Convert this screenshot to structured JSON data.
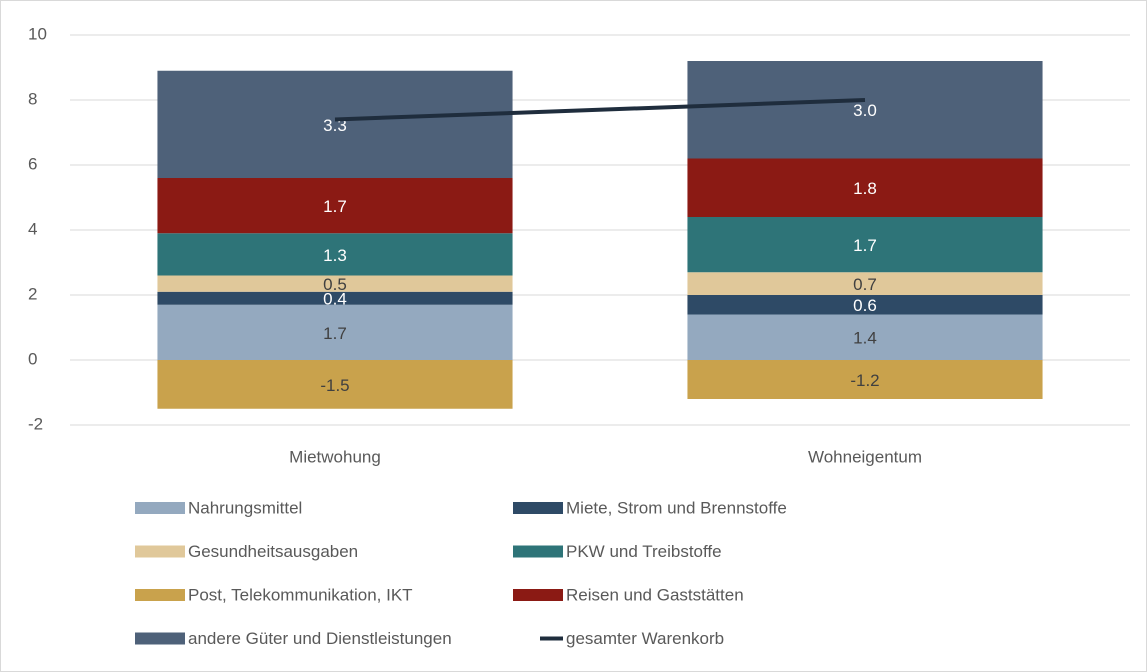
{
  "chart_data": {
    "type": "stacked_bar_line",
    "categories": [
      "Mietwohung",
      "Wohneigentum"
    ],
    "ylim": [
      -2,
      10
    ],
    "yticks": [
      -2,
      0,
      2,
      4,
      6,
      8,
      10
    ],
    "grid": true,
    "series": [
      {
        "name": "Nahrungsmittel",
        "type": "bar",
        "color": "#94a9bf",
        "label_color": "#404040",
        "values": [
          1.7,
          1.4
        ],
        "value_labels": [
          "1.7",
          "1.4"
        ]
      },
      {
        "name": "Miete, Strom und Brennstoffe",
        "type": "bar",
        "color": "#2e4a66",
        "label_color": "#ffffff",
        "values": [
          0.4,
          0.6
        ],
        "value_labels": [
          "0.4",
          "0.6"
        ]
      },
      {
        "name": "Gesundheitsausgaben",
        "type": "bar",
        "color": "#e0c89a",
        "label_color": "#404040",
        "values": [
          0.5,
          0.7
        ],
        "value_labels": [
          "0.5",
          "0.7"
        ]
      },
      {
        "name": "PKW und Treibstoffe",
        "type": "bar",
        "color": "#2e7478",
        "label_color": "#ffffff",
        "values": [
          1.3,
          1.7
        ],
        "value_labels": [
          "1.3",
          "1.7"
        ]
      },
      {
        "name": "Post, Telekommunikation, IKT",
        "type": "bar",
        "color": "#c9a24c",
        "label_color": "#404040",
        "values": [
          -1.5,
          -1.2
        ],
        "value_labels": [
          "-1.5",
          "-1.2"
        ]
      },
      {
        "name": "Reisen und Gaststätten",
        "type": "bar",
        "color": "#8b1a14",
        "label_color": "#ffffff",
        "values": [
          1.7,
          1.8
        ],
        "value_labels": [
          "1.7",
          "1.8"
        ]
      },
      {
        "name": "andere Güter und Dienstleistungen",
        "type": "bar",
        "color": "#4e6179",
        "label_color": "#ffffff",
        "values": [
          3.3,
          3.0
        ],
        "value_labels": [
          "3.3",
          "3.0"
        ]
      },
      {
        "name": "gesamter Warenkorb",
        "type": "line",
        "color": "#1f2d3d",
        "values": [
          7.4,
          8.0
        ]
      }
    ]
  }
}
